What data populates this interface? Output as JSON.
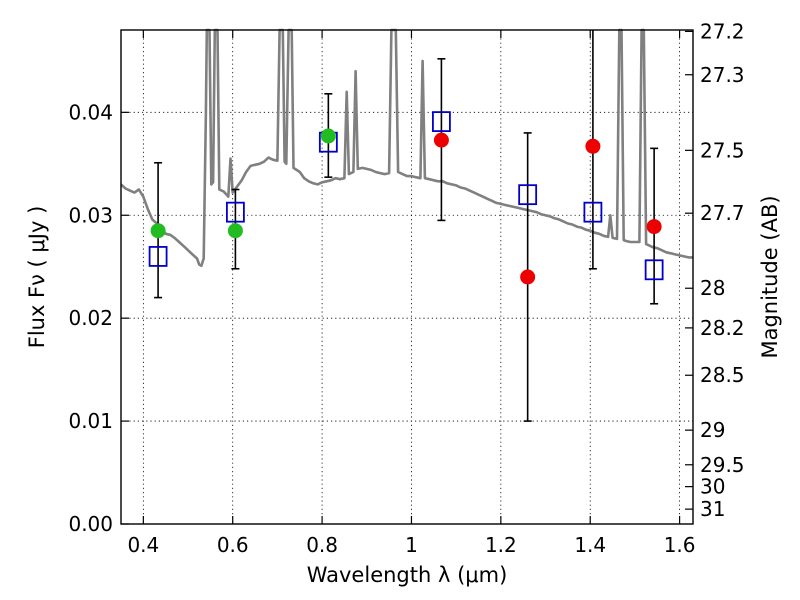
{
  "chart_data": {
    "type": "scatter",
    "title": "",
    "xlabel": "Wavelength  λ (μm)",
    "ylabel": "Flux  Fν  ( μJy )",
    "ylabel_right": "Magnitude (AB)",
    "xlim": [
      0.35,
      1.63
    ],
    "ylim": [
      0.0,
      0.048
    ],
    "grid": true,
    "x_ticks": [
      {
        "value": 0.4,
        "label": "0.4"
      },
      {
        "value": 0.6,
        "label": "0.6"
      },
      {
        "value": 0.8,
        "label": "0.8"
      },
      {
        "value": 1.0,
        "label": "1"
      },
      {
        "value": 1.2,
        "label": "1.2"
      },
      {
        "value": 1.4,
        "label": "1.4"
      },
      {
        "value": 1.6,
        "label": "1.6"
      }
    ],
    "y_ticks": [
      {
        "value": 0.0,
        "label": "0.00"
      },
      {
        "value": 0.01,
        "label": "0.01"
      },
      {
        "value": 0.02,
        "label": "0.02"
      },
      {
        "value": 0.03,
        "label": "0.03"
      },
      {
        "value": 0.04,
        "label": "0.04"
      }
    ],
    "right_ticks": [
      {
        "mag": 27.2,
        "label": "27.2"
      },
      {
        "mag": 27.3,
        "label": "27.3"
      },
      {
        "mag": 27.5,
        "label": "27.5"
      },
      {
        "mag": 27.7,
        "label": "27.7"
      },
      {
        "mag": 28.0,
        "label": "28"
      },
      {
        "mag": 28.2,
        "label": "28.2"
      },
      {
        "mag": 28.5,
        "label": "28.5"
      },
      {
        "mag": 29.0,
        "label": "29"
      },
      {
        "mag": 29.5,
        "label": "29.5"
      },
      {
        "mag": 30.0,
        "label": "30"
      },
      {
        "mag": 31.0,
        "label": "31"
      }
    ],
    "series": [
      {
        "kind": "line",
        "color": "#808080",
        "points": [
          [
            0.35,
            0.033
          ],
          [
            0.36,
            0.0326
          ],
          [
            0.37,
            0.0324
          ],
          [
            0.38,
            0.0322
          ],
          [
            0.39,
            0.0325
          ],
          [
            0.4,
            0.0318
          ],
          [
            0.41,
            0.0306
          ],
          [
            0.42,
            0.0296
          ],
          [
            0.43,
            0.0292
          ],
          [
            0.44,
            0.0288
          ],
          [
            0.45,
            0.0282
          ],
          [
            0.46,
            0.0281
          ],
          [
            0.47,
            0.0278
          ],
          [
            0.48,
            0.0274
          ],
          [
            0.49,
            0.027
          ],
          [
            0.5,
            0.0266
          ],
          [
            0.51,
            0.0262
          ],
          [
            0.52,
            0.0258
          ],
          [
            0.525,
            0.0252
          ],
          [
            0.53,
            0.0251
          ],
          [
            0.535,
            0.0258
          ],
          [
            0.54,
            0.04
          ],
          [
            0.542,
            0.0488
          ],
          [
            0.548,
            0.0488
          ],
          [
            0.552,
            0.033
          ],
          [
            0.556,
            0.0332
          ],
          [
            0.56,
            0.0488
          ],
          [
            0.566,
            0.0488
          ],
          [
            0.57,
            0.0325
          ],
          [
            0.58,
            0.0323
          ],
          [
            0.59,
            0.0318
          ],
          [
            0.595,
            0.0355
          ],
          [
            0.6,
            0.0322
          ],
          [
            0.61,
            0.0328
          ],
          [
            0.62,
            0.0334
          ],
          [
            0.63,
            0.0342
          ],
          [
            0.64,
            0.0348
          ],
          [
            0.65,
            0.0349
          ],
          [
            0.66,
            0.035
          ],
          [
            0.67,
            0.0352
          ],
          [
            0.68,
            0.0356
          ],
          [
            0.69,
            0.0354
          ],
          [
            0.7,
            0.0353
          ],
          [
            0.705,
            0.0488
          ],
          [
            0.712,
            0.0488
          ],
          [
            0.716,
            0.0352
          ],
          [
            0.72,
            0.035
          ],
          [
            0.725,
            0.0488
          ],
          [
            0.732,
            0.0488
          ],
          [
            0.736,
            0.0346
          ],
          [
            0.75,
            0.0342
          ],
          [
            0.76,
            0.0336
          ],
          [
            0.77,
            0.0333
          ],
          [
            0.78,
            0.0331
          ],
          [
            0.79,
            0.033
          ],
          [
            0.8,
            0.0332
          ],
          [
            0.81,
            0.0333
          ],
          [
            0.82,
            0.0334
          ],
          [
            0.83,
            0.0336
          ],
          [
            0.84,
            0.0335
          ],
          [
            0.85,
            0.0336
          ],
          [
            0.855,
            0.042
          ],
          [
            0.86,
            0.034
          ],
          [
            0.87,
            0.0342
          ],
          [
            0.875,
            0.044
          ],
          [
            0.88,
            0.0345
          ],
          [
            0.89,
            0.0346
          ],
          [
            0.9,
            0.0345
          ],
          [
            0.91,
            0.0344
          ],
          [
            0.92,
            0.0342
          ],
          [
            0.93,
            0.0341
          ],
          [
            0.94,
            0.034
          ],
          [
            0.95,
            0.0341
          ],
          [
            0.955,
            0.0488
          ],
          [
            0.965,
            0.0488
          ],
          [
            0.97,
            0.0342
          ],
          [
            0.98,
            0.034
          ],
          [
            0.99,
            0.0338
          ],
          [
            1.0,
            0.0338
          ],
          [
            1.01,
            0.0337
          ],
          [
            1.02,
            0.0336
          ],
          [
            1.025,
            0.045
          ],
          [
            1.03,
            0.0336
          ],
          [
            1.04,
            0.0335
          ],
          [
            1.05,
            0.0334
          ],
          [
            1.06,
            0.0333
          ],
          [
            1.07,
            0.0333
          ],
          [
            1.08,
            0.0331
          ],
          [
            1.09,
            0.033
          ],
          [
            1.1,
            0.0329
          ],
          [
            1.11,
            0.0327
          ],
          [
            1.12,
            0.0326
          ],
          [
            1.13,
            0.0324
          ],
          [
            1.14,
            0.0322
          ],
          [
            1.15,
            0.032
          ],
          [
            1.16,
            0.0318
          ],
          [
            1.17,
            0.0316
          ],
          [
            1.18,
            0.0314
          ],
          [
            1.19,
            0.0312
          ],
          [
            1.2,
            0.0311
          ],
          [
            1.21,
            0.031
          ],
          [
            1.22,
            0.0309
          ],
          [
            1.23,
            0.0308
          ],
          [
            1.24,
            0.0307
          ],
          [
            1.25,
            0.0306
          ],
          [
            1.26,
            0.0305
          ],
          [
            1.27,
            0.0304
          ],
          [
            1.28,
            0.0303
          ],
          [
            1.29,
            0.0301
          ],
          [
            1.3,
            0.03
          ],
          [
            1.31,
            0.0299
          ],
          [
            1.32,
            0.0297
          ],
          [
            1.33,
            0.0296
          ],
          [
            1.34,
            0.0294
          ],
          [
            1.35,
            0.0292
          ],
          [
            1.36,
            0.0291
          ],
          [
            1.37,
            0.0289
          ],
          [
            1.38,
            0.0288
          ],
          [
            1.39,
            0.0286
          ],
          [
            1.4,
            0.0285
          ],
          [
            1.41,
            0.0283
          ],
          [
            1.42,
            0.0282
          ],
          [
            1.43,
            0.028
          ],
          [
            1.44,
            0.0279
          ],
          [
            1.445,
            0.03
          ],
          [
            1.45,
            0.0278
          ],
          [
            1.46,
            0.0277
          ],
          [
            1.465,
            0.049
          ],
          [
            1.47,
            0.049
          ],
          [
            1.475,
            0.0276
          ],
          [
            1.48,
            0.0275
          ],
          [
            1.49,
            0.0274
          ],
          [
            1.5,
            0.0274
          ],
          [
            1.51,
            0.0274
          ],
          [
            1.515,
            0.048
          ],
          [
            1.52,
            0.048
          ],
          [
            1.525,
            0.0272
          ],
          [
            1.53,
            0.0271
          ],
          [
            1.54,
            0.0269
          ],
          [
            1.55,
            0.0268
          ],
          [
            1.56,
            0.0266
          ],
          [
            1.57,
            0.0264
          ],
          [
            1.58,
            0.0263
          ],
          [
            1.59,
            0.0262
          ],
          [
            1.6,
            0.0261
          ],
          [
            1.61,
            0.026
          ],
          [
            1.62,
            0.0259
          ],
          [
            1.63,
            0.0259
          ]
        ]
      },
      {
        "kind": "errorbar",
        "color": "#000000",
        "points": [
          {
            "x": 0.433,
            "low": 0.022,
            "high": 0.0351
          },
          {
            "x": 0.606,
            "low": 0.0248,
            "high": 0.0325
          },
          {
            "x": 0.814,
            "low": 0.0337,
            "high": 0.0418
          },
          {
            "x": 1.067,
            "low": 0.0295,
            "high": 0.0452
          },
          {
            "x": 1.26,
            "low": 0.01,
            "high": 0.038
          },
          {
            "x": 1.406,
            "low": 0.0248,
            "high": 0.049
          },
          {
            "x": 1.543,
            "low": 0.0214,
            "high": 0.0365
          }
        ]
      },
      {
        "kind": "square",
        "color": "#0000cc",
        "points": [
          [
            0.433,
            0.026
          ],
          [
            0.606,
            0.0303
          ],
          [
            0.814,
            0.0371
          ],
          [
            1.067,
            0.0391
          ],
          [
            1.26,
            0.032
          ],
          [
            1.406,
            0.0303
          ],
          [
            1.543,
            0.0247
          ]
        ]
      },
      {
        "kind": "circle",
        "color": "#22bb22",
        "points": [
          [
            0.433,
            0.0285
          ],
          [
            0.606,
            0.0285
          ],
          [
            0.814,
            0.0377
          ]
        ]
      },
      {
        "kind": "circle",
        "color": "#ee0000",
        "points": [
          [
            1.067,
            0.0373
          ],
          [
            1.26,
            0.024
          ],
          [
            1.406,
            0.0367
          ],
          [
            1.543,
            0.0289
          ]
        ]
      }
    ]
  }
}
